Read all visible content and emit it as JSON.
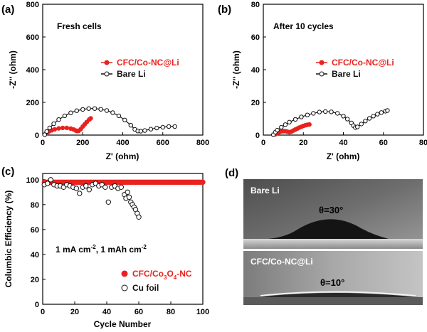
{
  "panel_letters": {
    "a": "(a)",
    "b": "(b)",
    "c": "(c)",
    "d": "(d)"
  },
  "colors": {
    "red": "#e8221f",
    "black": "#111111"
  },
  "photo": {
    "top_label": "Bare Li",
    "top_angle": "θ=30°",
    "bottom_label": "CFC/Co-NC@Li",
    "bottom_angle": "θ=10°"
  },
  "chart_data": [
    {
      "id": "a",
      "type": "scatter",
      "annotation": "Fresh cells",
      "xlabel": "Z' (ohm)",
      "ylabel": "-Z'' (ohm)",
      "xlim": [
        0,
        800
      ],
      "ylim": [
        0,
        800
      ],
      "xticks": [
        "0",
        "200",
        "400",
        "600",
        "800"
      ],
      "yticks": [
        "0",
        "200",
        "400",
        "600",
        "800"
      ],
      "legend_placement": "center-right",
      "series": [
        {
          "name": "CFC/Co-NC@Li",
          "color": "#e8221f",
          "points": [
            [
              10,
              3
            ],
            [
              20,
              12
            ],
            [
              30,
              20
            ],
            [
              45,
              29
            ],
            [
              60,
              35
            ],
            [
              80,
              41
            ],
            [
              100,
              44
            ],
            [
              120,
              44
            ],
            [
              140,
              40
            ],
            [
              155,
              34
            ],
            [
              165,
              28
            ],
            [
              172,
              25
            ],
            [
              180,
              26
            ],
            [
              190,
              36
            ],
            [
              200,
              52
            ],
            [
              210,
              66
            ],
            [
              220,
              80
            ],
            [
              232,
              95
            ],
            [
              240,
              102
            ]
          ]
        },
        {
          "name": "Bare Li",
          "color": "#111111",
          "points": [
            [
              10,
              2
            ],
            [
              20,
              22
            ],
            [
              35,
              44
            ],
            [
              55,
              69
            ],
            [
              80,
              95
            ],
            [
              110,
              118
            ],
            [
              140,
              136
            ],
            [
              170,
              149
            ],
            [
              200,
              157
            ],
            [
              230,
              162
            ],
            [
              260,
              162
            ],
            [
              290,
              158
            ],
            [
              320,
              150
            ],
            [
              350,
              137
            ],
            [
              380,
              118
            ],
            [
              410,
              92
            ],
            [
              440,
              60
            ],
            [
              460,
              35
            ],
            [
              475,
              25
            ],
            [
              490,
              24
            ],
            [
              510,
              28
            ],
            [
              540,
              36
            ],
            [
              570,
              43
            ],
            [
              600,
              48
            ],
            [
              630,
              52
            ],
            [
              660,
              52
            ]
          ]
        }
      ]
    },
    {
      "id": "b",
      "type": "scatter",
      "annotation": "After 10 cycles",
      "xlabel": "Z' (ohm)",
      "ylabel": "-Z'' (ohm)",
      "xlim": [
        0,
        80
      ],
      "ylim": [
        0,
        80
      ],
      "xticks": [
        "0",
        "20",
        "40",
        "60",
        "80"
      ],
      "yticks": [
        "0",
        "20",
        "40",
        "60",
        "80"
      ],
      "legend_placement": "center-right",
      "series": [
        {
          "name": "CFC/Co-NC@Li",
          "color": "#e8221f",
          "points": [
            [
              6,
              0.5
            ],
            [
              7,
              1.2
            ],
            [
              8,
              1.8
            ],
            [
              9,
              2.2
            ],
            [
              10,
              2.4
            ],
            [
              11,
              2.4
            ],
            [
              12,
              2.1
            ],
            [
              13,
              1.8
            ],
            [
              14,
              2.1
            ],
            [
              15,
              2.8
            ],
            [
              16,
              3.4
            ],
            [
              17,
              4.0
            ],
            [
              18,
              4.6
            ],
            [
              19,
              5.1
            ],
            [
              20,
              5.6
            ],
            [
              21,
              6.0
            ],
            [
              22,
              6.3
            ],
            [
              23,
              6.5
            ]
          ]
        },
        {
          "name": "Bare Li",
          "color": "#111111",
          "points": [
            [
              5,
              0.2
            ],
            [
              6,
              1.8
            ],
            [
              7,
              3.0
            ],
            [
              9,
              4.8
            ],
            [
              11,
              6.4
            ],
            [
              13,
              7.9
            ],
            [
              16,
              9.6
            ],
            [
              19,
              11.1
            ],
            [
              22,
              12.3
            ],
            [
              25,
              13.3
            ],
            [
              28,
              14.1
            ],
            [
              31,
              14.4
            ],
            [
              34,
              14.2
            ],
            [
              37,
              13.3
            ],
            [
              40,
              11.6
            ],
            [
              42,
              9.8
            ],
            [
              44,
              7.4
            ],
            [
              45,
              5.8
            ],
            [
              46,
              4.6
            ],
            [
              47,
              5.0
            ],
            [
              49,
              6.8
            ],
            [
              51,
              8.6
            ],
            [
              53,
              10.2
            ],
            [
              55,
              11.6
            ],
            [
              57,
              12.8
            ],
            [
              59,
              13.8
            ],
            [
              61,
              14.6
            ],
            [
              62,
              15.0
            ]
          ]
        }
      ]
    },
    {
      "id": "c",
      "type": "scatter",
      "annotation": "1 mA cm⁻², 1 mAh cm⁻²",
      "xlabel": "Cycle Number",
      "ylabel": "Columbic Efficiency (%)",
      "xlim": [
        0,
        100
      ],
      "ylim": [
        0,
        105
      ],
      "xticks": [
        "0",
        "20",
        "40",
        "60",
        "80",
        "100"
      ],
      "yticks": [
        "0",
        "20",
        "40",
        "60",
        "80",
        "100"
      ],
      "legend_placement": "bottom-right",
      "series": [
        {
          "name": "CFC/Co₃O₄-NC",
          "color": "#e8221f",
          "points": "flat_98_cycles_1_100"
        },
        {
          "name": "Cu foil",
          "color": "#111111",
          "points": [
            [
              1,
              96
            ],
            [
              3,
              97
            ],
            [
              5,
              100
            ],
            [
              7,
              96
            ],
            [
              9,
              95
            ],
            [
              11,
              95
            ],
            [
              13,
              94
            ],
            [
              15,
              96
            ],
            [
              17,
              95
            ],
            [
              19,
              94
            ],
            [
              21,
              93
            ],
            [
              23,
              89
            ],
            [
              25,
              94
            ],
            [
              27,
              95
            ],
            [
              29,
              92
            ],
            [
              31,
              96
            ],
            [
              33,
              97
            ],
            [
              35,
              95
            ],
            [
              37,
              96
            ],
            [
              39,
              94
            ],
            [
              41,
              82
            ],
            [
              43,
              94
            ],
            [
              45,
              95
            ],
            [
              47,
              93
            ],
            [
              49,
              94
            ],
            [
              51,
              88
            ],
            [
              52,
              85
            ],
            [
              53,
              90
            ],
            [
              54,
              86
            ],
            [
              55,
              82
            ],
            [
              56,
              80
            ],
            [
              57,
              78
            ],
            [
              58,
              76
            ],
            [
              59,
              73
            ],
            [
              60,
              70
            ]
          ]
        }
      ]
    }
  ]
}
